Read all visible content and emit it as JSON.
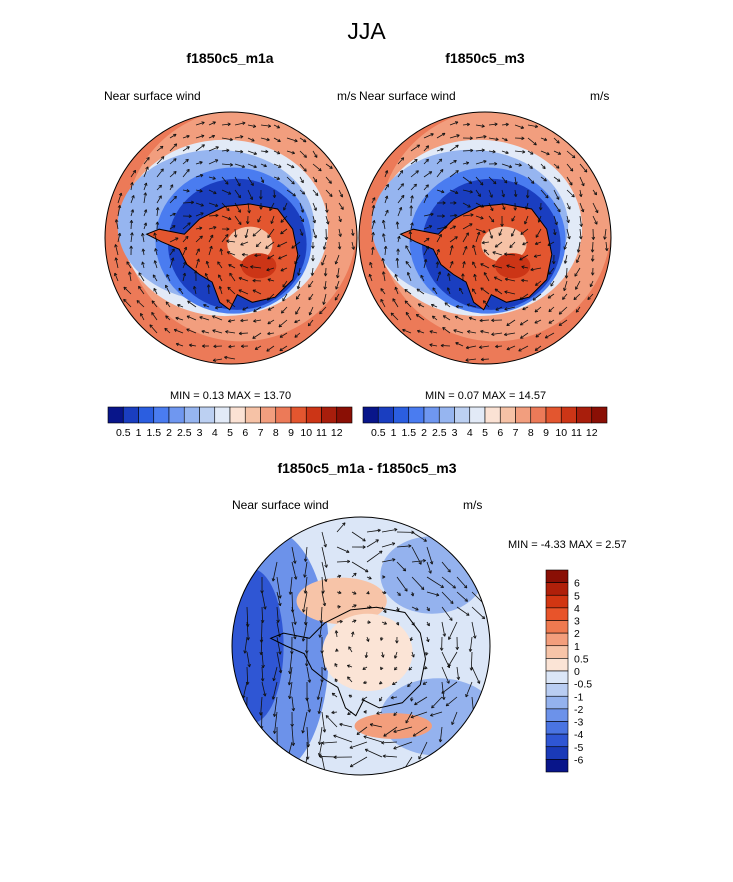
{
  "title": "JJA",
  "panels": [
    {
      "title": "f1850c5_m1a",
      "left_label": "Near surface wind",
      "right_label": "m/s",
      "minmax": "MIN =   0.13 MAX =  13.70"
    },
    {
      "title": "f1850c5_m3",
      "left_label": "Near surface wind",
      "right_label": "m/s",
      "minmax": "MIN =   0.07 MAX =  14.57"
    },
    {
      "title": "f1850c5_m1a - f1850c5_m3",
      "left_label": "Near surface wind",
      "right_label": "m/s",
      "minmax": "MIN =  -4.33 MAX =   2.57"
    }
  ],
  "chart_data": [
    {
      "type": "heatmap",
      "projection": "south polar stereographic",
      "title": "f1850c5_m1a",
      "variable": "Near surface wind",
      "units": "m/s",
      "min": 0.13,
      "max": 13.7,
      "colorbar": {
        "orientation": "horizontal",
        "labels": [
          "0.5",
          "1",
          "1.5",
          "2",
          "2.5",
          "3",
          "4",
          "5",
          "6",
          "7",
          "8",
          "9",
          "10",
          "11",
          "12"
        ]
      }
    },
    {
      "type": "heatmap",
      "projection": "south polar stereographic",
      "title": "f1850c5_m3",
      "variable": "Near surface wind",
      "units": "m/s",
      "min": 0.07,
      "max": 14.57,
      "colorbar": {
        "orientation": "horizontal",
        "labels": [
          "0.5",
          "1",
          "1.5",
          "2",
          "2.5",
          "3",
          "4",
          "5",
          "6",
          "7",
          "8",
          "9",
          "10",
          "11",
          "12"
        ]
      }
    },
    {
      "type": "heatmap",
      "projection": "south polar stereographic",
      "title": "f1850c5_m1a - f1850c5_m3",
      "variable": "Near surface wind",
      "units": "m/s",
      "min": -4.33,
      "max": 2.57,
      "colorbar": {
        "orientation": "vertical",
        "labels": [
          "6",
          "5",
          "4",
          "3",
          "2",
          "1",
          "0.5",
          "0",
          "-0.5",
          "-1",
          "-2",
          "-3",
          "-4",
          "-5",
          "-6"
        ]
      }
    }
  ],
  "colors": {
    "abs_scale": [
      "#08158a",
      "#1a3ec0",
      "#2b5ee0",
      "#4a7cf0",
      "#6f97f0",
      "#96b5f0",
      "#bcd0f2",
      "#e2eaf7",
      "#fbe2d4",
      "#f6c2a6",
      "#f29e7e",
      "#ec7a58",
      "#e3562f",
      "#cc3516",
      "#a81e0c",
      "#8a0f05"
    ],
    "diff_scale": [
      "#8a0f05",
      "#b0200a",
      "#d23612",
      "#e8542a",
      "#ef7a50",
      "#f39e7c",
      "#f7c4a8",
      "#fbe4d6",
      "#dbe6f7",
      "#b9cdf2",
      "#94b2ee",
      "#6c92ea",
      "#4a74e2",
      "#2f56d4",
      "#1a3ab8",
      "#08158a"
    ],
    "land_outline": "#000000"
  }
}
